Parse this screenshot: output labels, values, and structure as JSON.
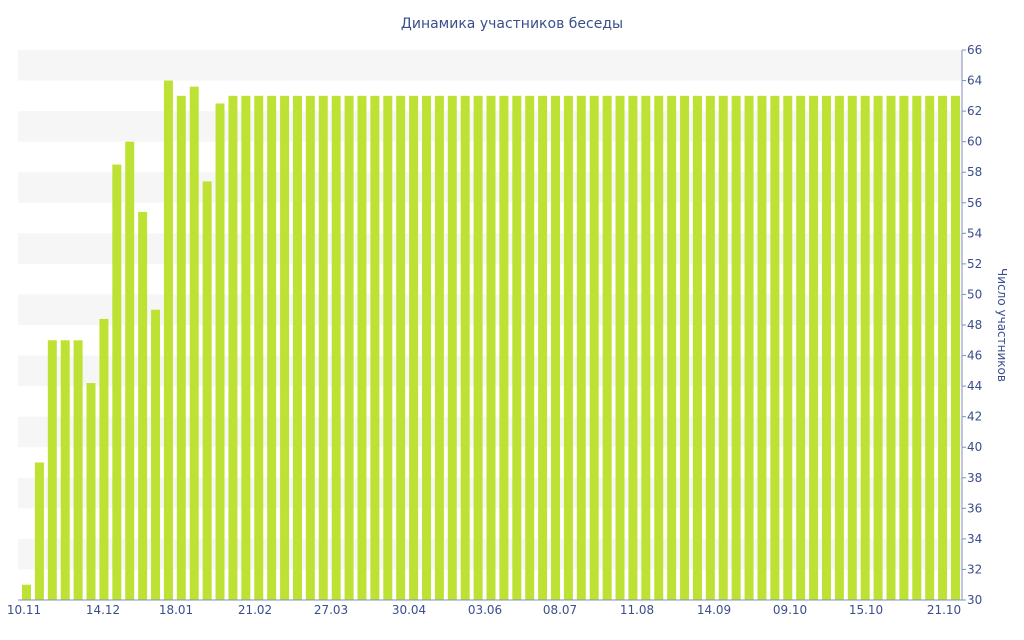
{
  "chart_data": {
    "type": "bar",
    "title": "Динамика участников беседы",
    "xlabel": "",
    "ylabel": "Число участников",
    "ylim": [
      30,
      66
    ],
    "y_ticks": [
      30,
      32,
      34,
      36,
      38,
      40,
      42,
      44,
      46,
      48,
      50,
      52,
      54,
      56,
      58,
      60,
      62,
      64,
      66
    ],
    "x_tick_labels": [
      "10.11",
      "14.12",
      "18.01",
      "21.02",
      "27.03",
      "30.04",
      "03.06",
      "08.07",
      "11.08",
      "14.09",
      "09.10",
      "15.10",
      "21.10"
    ],
    "grid": "horizontal bands",
    "legend": "none",
    "values": [
      31,
      39,
      47,
      47,
      47,
      44.2,
      48.4,
      58.5,
      60,
      55.4,
      49,
      64,
      63,
      63.6,
      57.4,
      62.5,
      63,
      63,
      63,
      63,
      63,
      63,
      63,
      63,
      63,
      63,
      63,
      63,
      63,
      63,
      63,
      63,
      63,
      63,
      63,
      63,
      63,
      63,
      63,
      63,
      63,
      63,
      63,
      63,
      63,
      63,
      63,
      63,
      63,
      63,
      63,
      63,
      63,
      63,
      63,
      63,
      63,
      63,
      63,
      63,
      63,
      63,
      63,
      63,
      63,
      63,
      63,
      63,
      63,
      63,
      63,
      63,
      63
    ],
    "colors": {
      "bar": "#bee234",
      "band": "#f6f6f6",
      "text": "#3a4e8c",
      "axis": "#7f8fbf"
    }
  }
}
